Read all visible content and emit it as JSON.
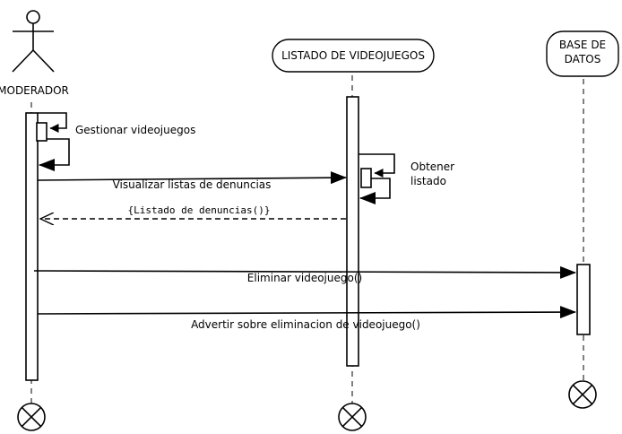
{
  "participants": {
    "moderador": {
      "label": "MODERADOR"
    },
    "listado": {
      "label": "LISTADO DE VIDEOJUEGOS"
    },
    "base": {
      "line1": "BASE DE",
      "line2": "DATOS"
    }
  },
  "messages": {
    "gestionar": "Gestionar videojuegos",
    "visualizar": "Visualizar listas de denuncias",
    "retorno": "{Listado de denuncias()}",
    "obtener_line1": "Obtener",
    "obtener_line2": "listado",
    "eliminar": "Eliminar videojuego()",
    "advertir": "Advertir sobre eliminacion de videojuego()"
  }
}
